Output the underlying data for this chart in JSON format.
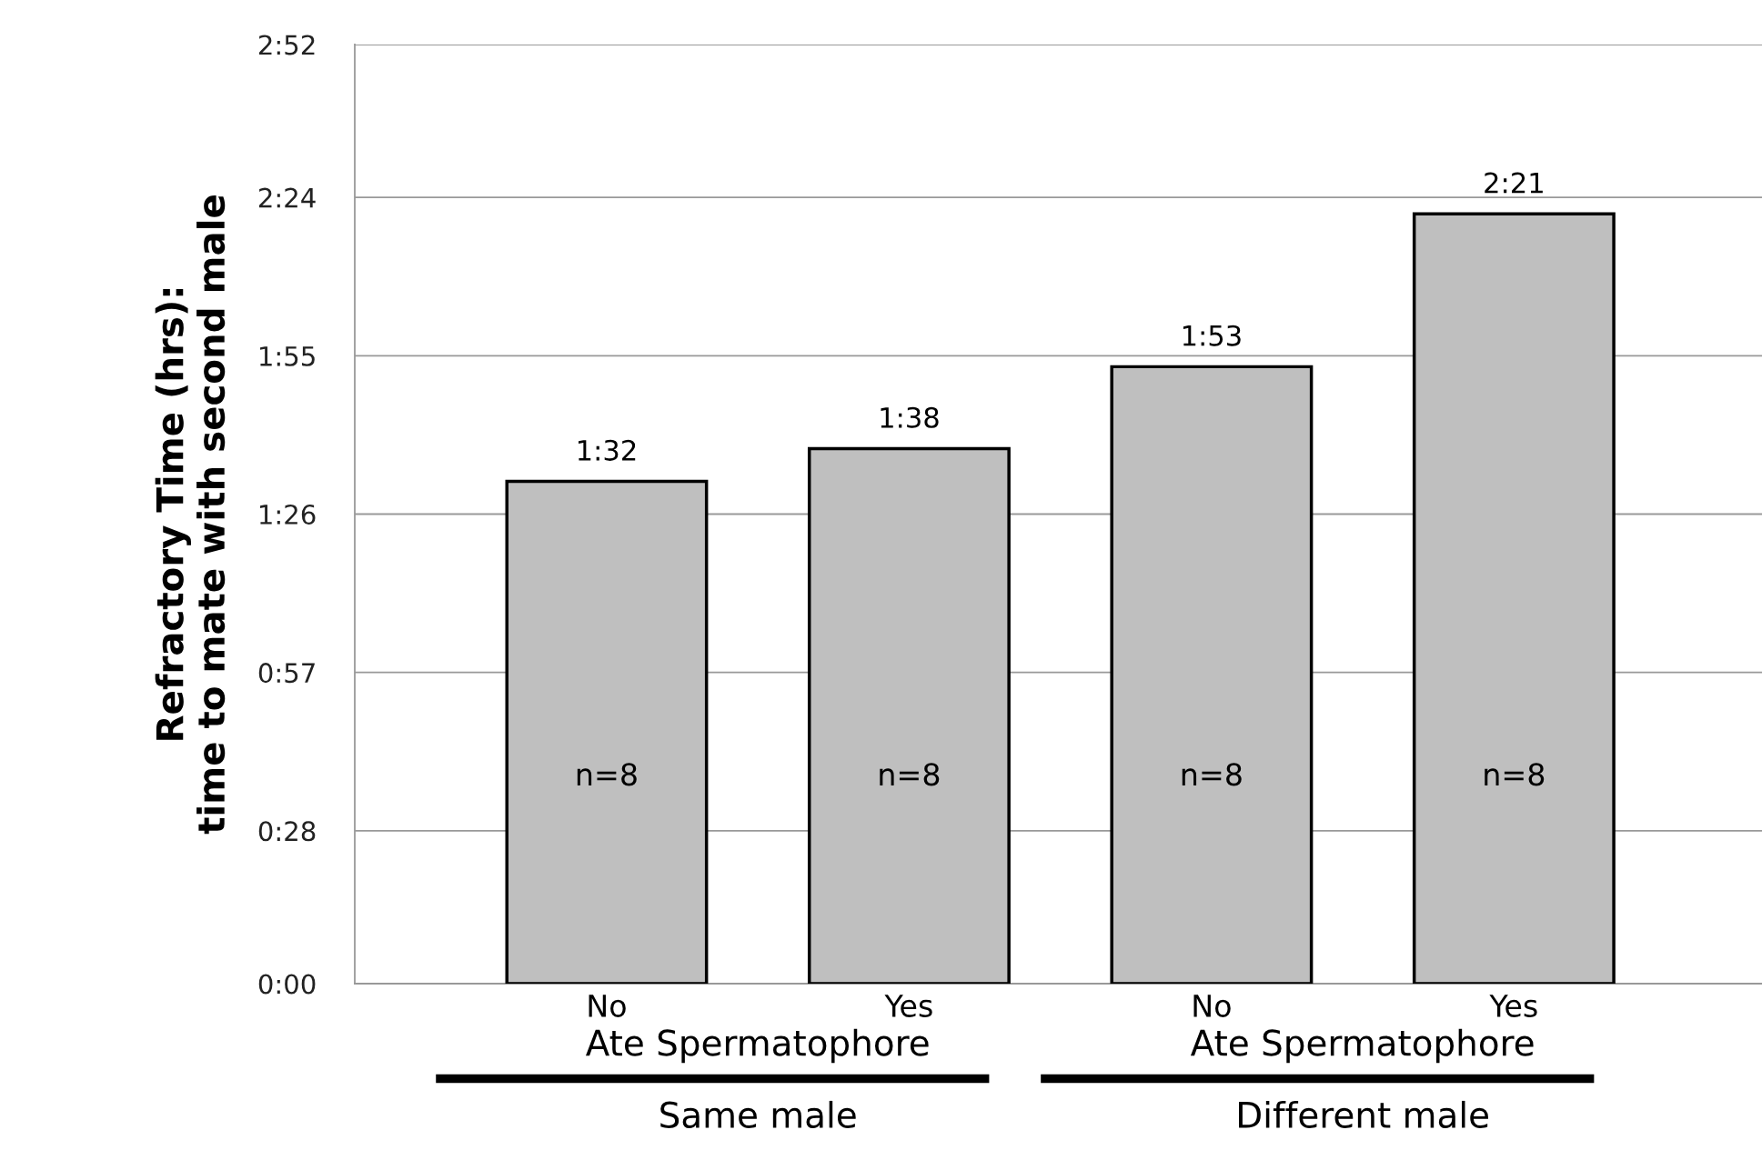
{
  "chart_data": {
    "type": "bar",
    "ylabel": "Refractory Time (hrs):\ntime to mate with second male",
    "categories": [
      "No",
      "Yes",
      "No",
      "Yes"
    ],
    "values": [
      1.5333,
      1.6333,
      1.8833,
      2.35
    ],
    "value_labels": [
      "1:32",
      "1:38",
      "1:53",
      "2:21"
    ],
    "color": "#bfbfbf",
    "ylim": [
      0,
      2.8667
    ],
    "yticks": [
      {
        "value": 0,
        "label": "0:00"
      },
      {
        "value": 0.4667,
        "label": "0:28"
      },
      {
        "value": 0.95,
        "label": "0:57"
      },
      {
        "value": 1.4333,
        "label": "1:26"
      },
      {
        "value": 1.9167,
        "label": "1:55"
      },
      {
        "value": 2.4,
        "label": "2:24"
      },
      {
        "value": 2.8667,
        "label": "2:52"
      }
    ],
    "grid": "y",
    "legend": false,
    "annotations": [
      "n=8",
      "n=8",
      "n=8",
      "n=8",
      "Ate Spermatophore",
      "Ate Spermatophore",
      "Same male",
      "Different male"
    ]
  }
}
